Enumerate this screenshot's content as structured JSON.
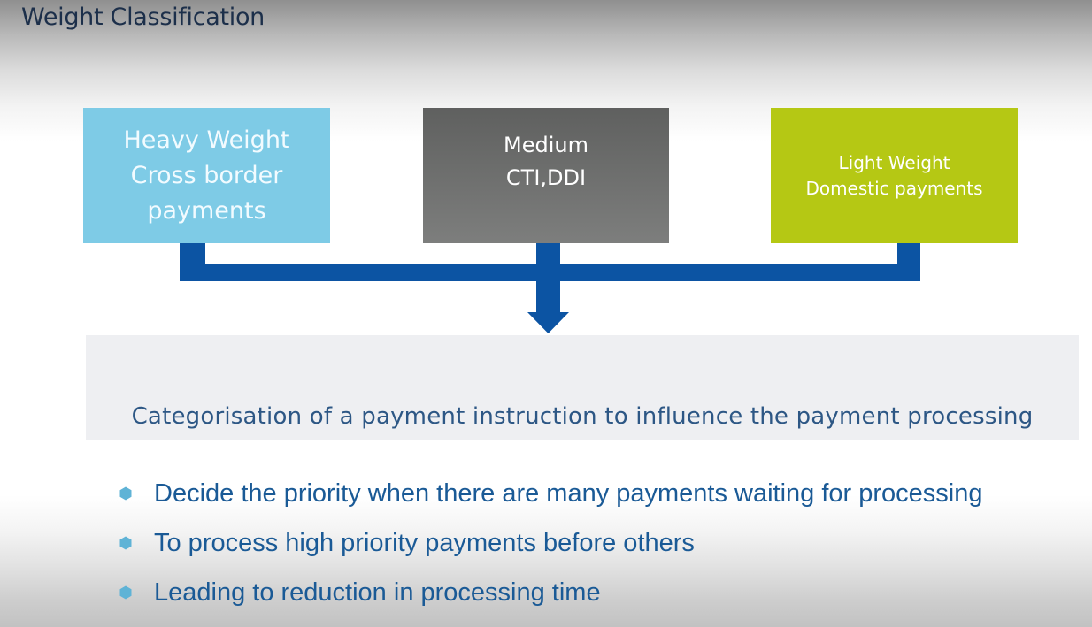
{
  "title": "Weight Classification",
  "boxes": [
    {
      "lines": [
        "Heavy Weight",
        "Cross border",
        "payments"
      ],
      "color": "#7ecbe6"
    },
    {
      "lines": [
        "Medium",
        "CTI,DDI"
      ],
      "color": "#6e6f6e"
    },
    {
      "lines": [
        "Light Weight",
        "Domestic payments"
      ],
      "color": "#b5c814"
    }
  ],
  "connector_color": "#0c54a3",
  "panel_text": "Categorisation of a payment instruction to influence the payment processing",
  "bullets": [
    "Decide the priority when there are many payments waiting for processing",
    "To process high priority payments before others",
    "Leading to reduction in processing time"
  ],
  "bullet_marker_color": "#5fb3d6"
}
